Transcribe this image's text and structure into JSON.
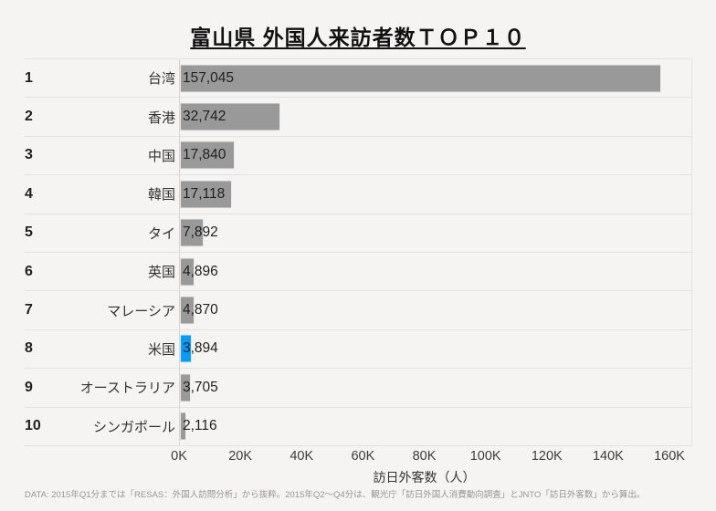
{
  "title": "富山県 外国人来訪者数ＴＯＰ１０",
  "footer_note": "DATA: 2015年Q1分までは「RESAS：外国人訪問分析」から抜粋。2015年Q2～Q4分は、観光庁「訪日外国人消費動向調査」とJNTO「訪日外客数」から算出。",
  "colors": {
    "bar": "#999999",
    "highlight": "#009cff",
    "background": "#f5f4f2",
    "separator": "#e4e2e0",
    "axis_line": "#d5d3d1"
  },
  "chart_data": {
    "type": "bar",
    "orientation": "horizontal",
    "title": "富山県 外国人来訪者数ＴＯＰ１０",
    "xlabel": "訪日外客数（人）",
    "xlim": [
      0,
      160000
    ],
    "x_ticks": [
      "0K",
      "20K",
      "40K",
      "60K",
      "80K",
      "100K",
      "120K",
      "140K",
      "160K"
    ],
    "grid": false,
    "legend": false,
    "highlighted_category": "米国",
    "rows": [
      {
        "rank": 1,
        "label": "台湾",
        "value": 157045,
        "highlighted": false
      },
      {
        "rank": 2,
        "label": "香港",
        "value": 32742,
        "highlighted": false
      },
      {
        "rank": 3,
        "label": "中国",
        "value": 17840,
        "highlighted": false
      },
      {
        "rank": 4,
        "label": "韓国",
        "value": 17118,
        "highlighted": false
      },
      {
        "rank": 5,
        "label": "タイ",
        "value": 7892,
        "highlighted": false
      },
      {
        "rank": 6,
        "label": "英国",
        "value": 4896,
        "highlighted": false
      },
      {
        "rank": 7,
        "label": "マレーシア",
        "value": 4870,
        "highlighted": false
      },
      {
        "rank": 8,
        "label": "米国",
        "value": 3894,
        "highlighted": true
      },
      {
        "rank": 9,
        "label": "オーストラリア",
        "value": 3705,
        "highlighted": false
      },
      {
        "rank": 10,
        "label": "シンガポール",
        "value": 2116,
        "highlighted": false
      }
    ]
  }
}
